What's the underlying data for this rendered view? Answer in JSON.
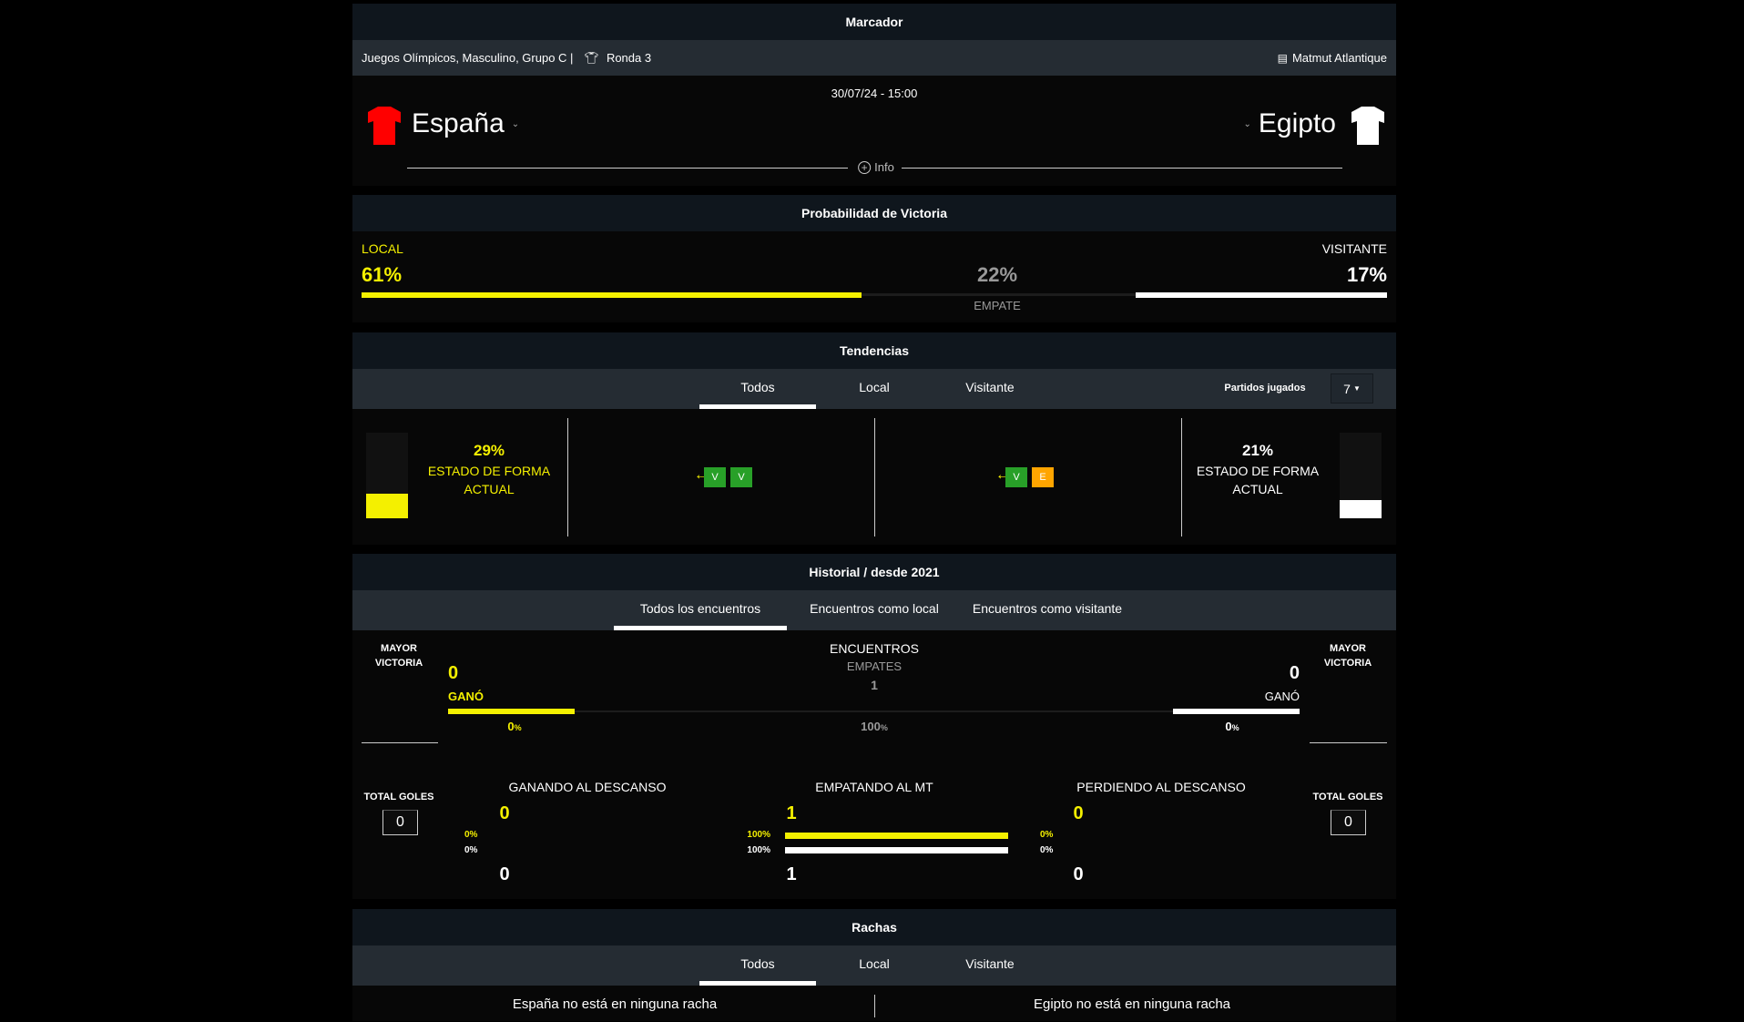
{
  "marcador": {
    "title": "Marcador",
    "competition": "Juegos Olímpicos, Masculino, Grupo C |",
    "round": "Ronda 3",
    "stadium": "Matmut Atlantique",
    "datetime": "30/07/24 - 15:00",
    "home_team": "España",
    "away_team": "Egipto",
    "info_label": "Info",
    "colors": {
      "home": "#ff0000",
      "away": "#ffffff"
    }
  },
  "probabilidad": {
    "title": "Probabilidad de Victoria",
    "local_label": "LOCAL",
    "local_pct": "61%",
    "draw_pct": "22%",
    "draw_label": "EMPATE",
    "away_label": "VISITANTE",
    "away_pct": "17%",
    "local_value": 61,
    "draw_value": 22,
    "away_value": 17
  },
  "tendencias": {
    "title": "Tendencias",
    "tabs": [
      "Todos",
      "Local",
      "Visitante"
    ],
    "partidos_label": "Partidos jugados",
    "partidos_value": "7",
    "home": {
      "pct": "29%",
      "value": 29,
      "label1": "ESTADO DE FORMA",
      "label2": "ACTUAL",
      "results": [
        "V",
        "V"
      ]
    },
    "away": {
      "pct": "21%",
      "value": 21,
      "label1": "ESTADO DE FORMA",
      "label2": "ACTUAL",
      "results": [
        "V",
        "E"
      ]
    }
  },
  "historial": {
    "title": "Historial / desde 2021",
    "tabs": [
      "Todos los encuentros",
      "Encuentros como local",
      "Encuentros como visitante"
    ],
    "mayor_victoria": "MAYOR VICTORIA",
    "encuentros": "ENCUENTROS",
    "empates_label": "EMPATES",
    "empates": "1",
    "home_won": "0",
    "away_won": "0",
    "gano": "GANÓ",
    "home_pct": "0",
    "away_pct": "0",
    "draw_pct": "100",
    "pct_sign": "%",
    "total_goles": "TOTAL GOLES",
    "home_goals": "0",
    "away_goals": "0",
    "halftime": [
      {
        "label": "GANANDO AL DESCANSO",
        "home": "0",
        "away": "0",
        "home_pct": "0%",
        "away_pct": "0%"
      },
      {
        "label": "EMPATANDO AL MT",
        "home": "1",
        "away": "1",
        "home_pct": "100%",
        "away_pct": "100%",
        "right_home_pct": "0%",
        "right_away_pct": "0%"
      },
      {
        "label": "PERDIENDO AL DESCANSO",
        "home": "0",
        "away": "0"
      }
    ]
  },
  "rachas": {
    "title": "Rachas",
    "tabs": [
      "Todos",
      "Local",
      "Visitante"
    ],
    "home_text": "España no está en ninguna racha",
    "away_text": "Egipto no está en ninguna racha"
  }
}
